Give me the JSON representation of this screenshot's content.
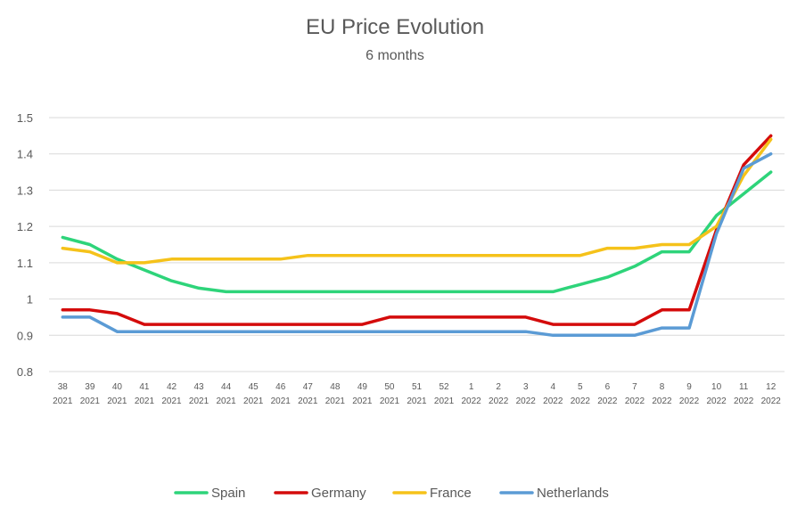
{
  "chart_data": {
    "type": "line",
    "title": "EU Price Evolution",
    "subtitle": "6 months",
    "xlabel": "",
    "ylabel": "",
    "ylim": [
      0.8,
      1.5
    ],
    "yticks": [
      "1.5",
      "1.4",
      "1.3",
      "1.2",
      "1.1",
      "1",
      "0.9",
      "0.8"
    ],
    "categories": [
      {
        "week": "38",
        "year": "2021"
      },
      {
        "week": "39",
        "year": "2021"
      },
      {
        "week": "40",
        "year": "2021"
      },
      {
        "week": "41",
        "year": "2021"
      },
      {
        "week": "42",
        "year": "2021"
      },
      {
        "week": "43",
        "year": "2021"
      },
      {
        "week": "44",
        "year": "2021"
      },
      {
        "week": "45",
        "year": "2021"
      },
      {
        "week": "46",
        "year": "2021"
      },
      {
        "week": "47",
        "year": "2021"
      },
      {
        "week": "48",
        "year": "2021"
      },
      {
        "week": "49",
        "year": "2021"
      },
      {
        "week": "50",
        "year": "2021"
      },
      {
        "week": "51",
        "year": "2021"
      },
      {
        "week": "52",
        "year": "2021"
      },
      {
        "week": "1",
        "year": "2022"
      },
      {
        "week": "2",
        "year": "2022"
      },
      {
        "week": "3",
        "year": "2022"
      },
      {
        "week": "4",
        "year": "2022"
      },
      {
        "week": "5",
        "year": "2022"
      },
      {
        "week": "6",
        "year": "2022"
      },
      {
        "week": "7",
        "year": "2022"
      },
      {
        "week": "8",
        "year": "2022"
      },
      {
        "week": "9",
        "year": "2022"
      },
      {
        "week": "10",
        "year": "2022"
      },
      {
        "week": "11",
        "year": "2022"
      },
      {
        "week": "12",
        "year": "2022"
      }
    ],
    "series": [
      {
        "name": "Spain",
        "color": "#2ed47a",
        "values": [
          1.17,
          1.15,
          1.11,
          1.08,
          1.05,
          1.03,
          1.02,
          1.02,
          1.02,
          1.02,
          1.02,
          1.02,
          1.02,
          1.02,
          1.02,
          1.02,
          1.02,
          1.02,
          1.02,
          1.04,
          1.06,
          1.09,
          1.13,
          1.13,
          1.23,
          1.29,
          1.35
        ]
      },
      {
        "name": "Germany",
        "color": "#d40b0b",
        "values": [
          0.97,
          0.97,
          0.96,
          0.93,
          0.93,
          0.93,
          0.93,
          0.93,
          0.93,
          0.93,
          0.93,
          0.93,
          0.95,
          0.95,
          0.95,
          0.95,
          0.95,
          0.95,
          0.93,
          0.93,
          0.93,
          0.93,
          0.97,
          0.97,
          1.19,
          1.37,
          1.45
        ]
      },
      {
        "name": "France",
        "color": "#f5c21a",
        "values": [
          1.14,
          1.13,
          1.1,
          1.1,
          1.11,
          1.11,
          1.11,
          1.11,
          1.11,
          1.12,
          1.12,
          1.12,
          1.12,
          1.12,
          1.12,
          1.12,
          1.12,
          1.12,
          1.12,
          1.12,
          1.14,
          1.14,
          1.15,
          1.15,
          1.2,
          1.34,
          1.44
        ]
      },
      {
        "name": "Netherlands",
        "color": "#5b9bd5",
        "values": [
          0.95,
          0.95,
          0.91,
          0.91,
          0.91,
          0.91,
          0.91,
          0.91,
          0.91,
          0.91,
          0.91,
          0.91,
          0.91,
          0.91,
          0.91,
          0.91,
          0.91,
          0.91,
          0.9,
          0.9,
          0.9,
          0.9,
          0.92,
          0.92,
          1.18,
          1.36,
          1.4
        ]
      }
    ],
    "grid": true,
    "legend_position": "bottom"
  }
}
